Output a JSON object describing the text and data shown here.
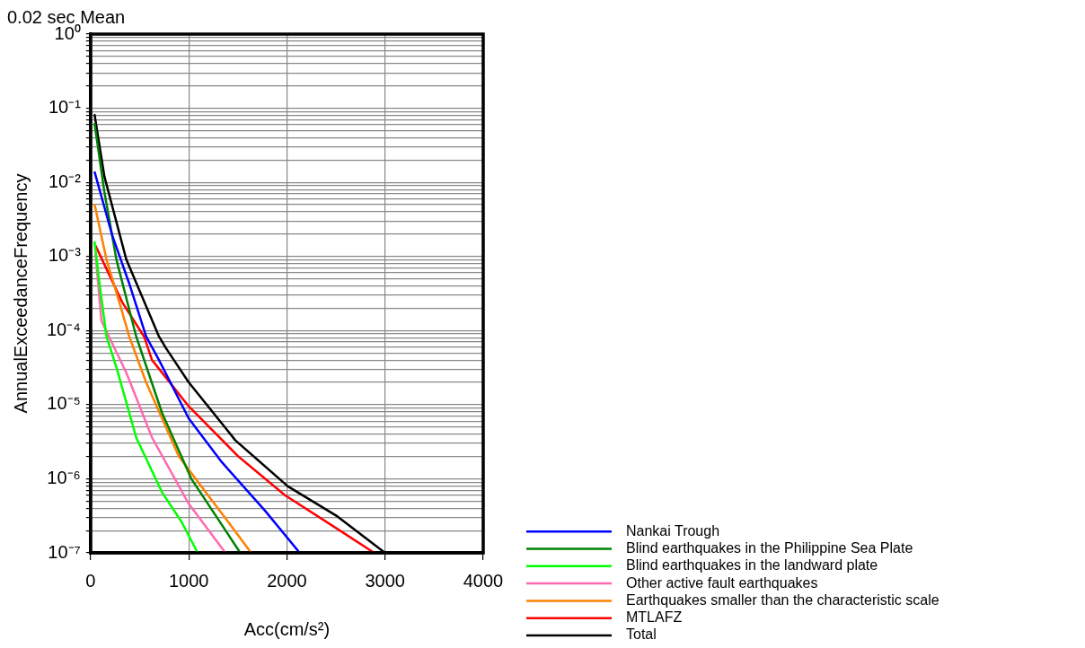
{
  "chart_data": {
    "type": "line",
    "title": "0.02 sec Mean",
    "xlabel": "Acc(cm/s²)",
    "ylabel": "AnnualExceedanceFrequency",
    "log": "y",
    "grid": true,
    "legend": "bottom right",
    "marker": "none",
    "line_style": "solid",
    "xlim": [
      0,
      4000
    ],
    "xticks": [
      0,
      1000,
      2000,
      3000,
      4000
    ],
    "ylim": [
      1e-07,
      1
    ],
    "yticks": [
      {
        "value": 1e-07,
        "label": "10⁻⁷"
      },
      {
        "value": 2e-07,
        "label": null
      },
      {
        "value": 3e-07,
        "label": null
      },
      {
        "value": 4e-07,
        "label": null
      },
      {
        "value": 5e-07,
        "label": null
      },
      {
        "value": 6e-07,
        "label": null
      },
      {
        "value": 7e-07,
        "label": null
      },
      {
        "value": 8e-07,
        "label": null
      },
      {
        "value": 9e-07,
        "label": null
      },
      {
        "value": 1e-06,
        "label": "10⁻⁶"
      },
      {
        "value": 2e-06,
        "label": null
      },
      {
        "value": 3e-06,
        "label": null
      },
      {
        "value": 4e-06,
        "label": null
      },
      {
        "value": 5e-06,
        "label": null
      },
      {
        "value": 6e-06,
        "label": null
      },
      {
        "value": 7e-06,
        "label": null
      },
      {
        "value": 8e-06,
        "label": null
      },
      {
        "value": 9e-06,
        "label": null
      },
      {
        "value": 1e-05,
        "label": "10⁻⁵"
      },
      {
        "value": 2e-05,
        "label": null
      },
      {
        "value": 3e-05,
        "label": null
      },
      {
        "value": 4e-05,
        "label": null
      },
      {
        "value": 5e-05,
        "label": null
      },
      {
        "value": 6e-05,
        "label": null
      },
      {
        "value": 7e-05,
        "label": null
      },
      {
        "value": 8e-05,
        "label": null
      },
      {
        "value": 9e-05,
        "label": null
      },
      {
        "value": 0.0001,
        "label": "10⁻⁴"
      },
      {
        "value": 0.0002,
        "label": null
      },
      {
        "value": 0.0003,
        "label": null
      },
      {
        "value": 0.0004,
        "label": null
      },
      {
        "value": 0.0005,
        "label": null
      },
      {
        "value": 0.0006,
        "label": null
      },
      {
        "value": 0.0007,
        "label": null
      },
      {
        "value": 0.0008,
        "label": null
      },
      {
        "value": 0.0009,
        "label": null
      },
      {
        "value": 0.001,
        "label": "10⁻³"
      },
      {
        "value": 0.002,
        "label": null
      },
      {
        "value": 0.003,
        "label": null
      },
      {
        "value": 0.004,
        "label": null
      },
      {
        "value": 0.005,
        "label": null
      },
      {
        "value": 0.006,
        "label": null
      },
      {
        "value": 0.007,
        "label": null
      },
      {
        "value": 0.008,
        "label": null
      },
      {
        "value": 0.009,
        "label": null
      },
      {
        "value": 0.01,
        "label": "10⁻²"
      },
      {
        "value": 0.02,
        "label": null
      },
      {
        "value": 0.03,
        "label": null
      },
      {
        "value": 0.04,
        "label": null
      },
      {
        "value": 0.05,
        "label": null
      },
      {
        "value": 0.06,
        "label": null
      },
      {
        "value": 0.07,
        "label": null
      },
      {
        "value": 0.08,
        "label": null
      },
      {
        "value": 0.09,
        "label": null
      },
      {
        "value": 0.1,
        "label": "10⁻¹"
      },
      {
        "value": 0.2,
        "label": null
      },
      {
        "value": 0.3,
        "label": null
      },
      {
        "value": 0.4,
        "label": null
      },
      {
        "value": 0.5,
        "label": null
      },
      {
        "value": 0.6,
        "label": null
      },
      {
        "value": 0.7,
        "label": null
      },
      {
        "value": 0.8,
        "label": null
      },
      {
        "value": 0.9,
        "label": null
      },
      {
        "value": 1,
        "label": "10⁰"
      }
    ],
    "series": [
      {
        "name": "Nankai Trough",
        "color": "#0000ff",
        "x": [
          40,
          222,
          394,
          566,
          697,
          1000,
          1333,
          1778,
          2131
        ],
        "values": [
          0.014,
          0.0019,
          0.00043,
          8.3e-05,
          4e-05,
          6.5e-06,
          1.7e-06,
          3.7e-07,
          1e-07
        ]
      },
      {
        "name": "Blind earthquakes in the Philippine Sea Plate",
        "color": "#008000",
        "x": [
          40,
          141,
          263,
          465,
          727,
          1030,
          1303,
          1525
        ],
        "values": [
          0.063,
          0.0074,
          0.00091,
          8.3e-05,
          7.8e-06,
          9.8e-07,
          2.8e-07,
          1e-07
        ]
      },
      {
        "name": "Blind earthquakes in the landward plate",
        "color": "#00ff00",
        "x": [
          40,
          91,
          162,
          263,
          465,
          727,
          929,
          1091
        ],
        "values": [
          0.0016,
          0.00043,
          8.3e-05,
          3.2e-05,
          3.6e-06,
          6.6e-07,
          2.6e-07,
          1e-07
        ]
      },
      {
        "name": "Other active fault earthquakes",
        "color": "#ff69b4",
        "x": [
          50,
          111,
          364,
          626,
          1000,
          1374
        ],
        "values": [
          0.0011,
          0.000135,
          2.7e-05,
          3.6e-06,
          4.6e-07,
          1e-07
        ]
      },
      {
        "name": "Earthquakes smaller than the characteristic scale",
        "color": "#ff8000",
        "x": [
          40,
          162,
          293,
          394,
          566,
          899,
          1172,
          1404,
          1636
        ],
        "values": [
          0.0051,
          0.00091,
          0.00024,
          8.3e-05,
          2e-05,
          2e-06,
          6.6e-07,
          2.6e-07,
          1e-07
        ]
      },
      {
        "name": "MTLAFZ",
        "color": "#ff0000",
        "x": [
          50,
          323,
          545,
          626,
          1000,
          1505,
          1980,
          2515,
          2890
        ],
        "values": [
          0.0014,
          0.00024,
          8.3e-05,
          4e-05,
          9.5e-06,
          2e-06,
          6e-07,
          2.1e-07,
          1e-07
        ]
      },
      {
        "name": "Total",
        "color": "#000000",
        "x": [
          40,
          141,
          364,
          697,
          768,
          1000,
          1475,
          2010,
          2515,
          3000
        ],
        "values": [
          0.083,
          0.012,
          0.00091,
          8.3e-05,
          5.8e-05,
          2e-05,
          3.3e-06,
          7.9e-07,
          3.1e-07,
          1e-07
        ]
      }
    ]
  }
}
